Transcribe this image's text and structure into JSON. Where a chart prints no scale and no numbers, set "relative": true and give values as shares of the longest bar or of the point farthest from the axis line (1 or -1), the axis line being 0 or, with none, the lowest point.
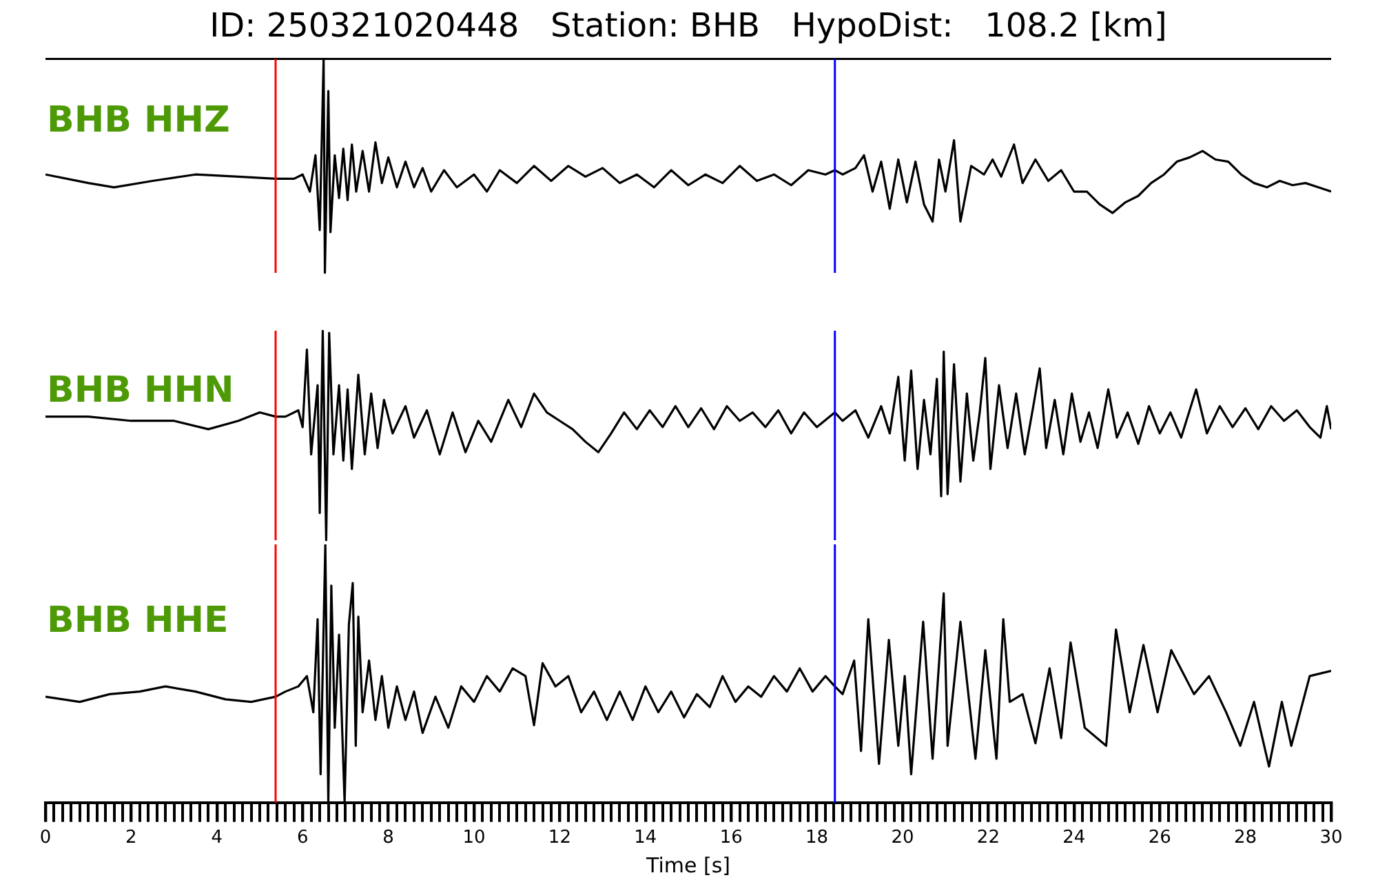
{
  "chart_data": [
    {
      "type": "line",
      "title": "ID: 250321020448   Station: BHB   HypoDist:   108.2 [km]",
      "relative": true,
      "xlim": [
        0,
        30
      ],
      "tick_labels": false,
      "legend": false,
      "x": [
        0,
        1.0,
        1.6,
        2.5,
        3.5,
        4.5,
        5.37,
        5.8,
        6.0,
        6.17,
        6.3,
        6.4,
        6.49,
        6.52,
        6.6,
        6.65,
        6.75,
        6.85,
        6.95,
        7.05,
        7.15,
        7.25,
        7.4,
        7.55,
        7.7,
        7.85,
        8.0,
        8.2,
        8.4,
        8.6,
        8.8,
        9.0,
        9.3,
        9.6,
        10.0,
        10.3,
        10.6,
        11.0,
        11.4,
        11.8,
        12.2,
        12.6,
        13.0,
        13.4,
        13.8,
        14.2,
        14.6,
        15.0,
        15.4,
        15.8,
        16.2,
        16.6,
        17.0,
        17.4,
        17.8,
        18.2,
        18.42,
        18.6,
        18.9,
        19.1,
        19.3,
        19.5,
        19.7,
        19.9,
        20.1,
        20.3,
        20.5,
        20.7,
        20.85,
        21.0,
        21.2,
        21.35,
        21.6,
        21.9,
        22.1,
        22.3,
        22.6,
        22.8,
        23.1,
        23.4,
        23.7,
        24.0,
        24.3,
        24.6,
        24.9,
        25.2,
        25.5,
        25.8,
        26.1,
        26.4,
        26.7,
        27.0,
        27.3,
        27.6,
        27.9,
        28.2,
        28.5,
        28.8,
        29.1,
        29.4,
        29.7,
        30.0
      ],
      "series": [
        {
          "name": "BHB HHZ",
          "color": "#000000",
          "values": [
            0.46,
            0.42,
            0.4,
            0.43,
            0.46,
            0.45,
            0.44,
            0.44,
            0.46,
            0.38,
            0.55,
            0.2,
            1,
            0,
            0.85,
            0.19,
            0.55,
            0.35,
            0.58,
            0.34,
            0.6,
            0.38,
            0.57,
            0.38,
            0.61,
            0.42,
            0.54,
            0.4,
            0.52,
            0.4,
            0.49,
            0.38,
            0.48,
            0.4,
            0.46,
            0.38,
            0.48,
            0.42,
            0.5,
            0.43,
            0.5,
            0.45,
            0.49,
            0.42,
            0.46,
            0.4,
            0.48,
            0.41,
            0.46,
            0.42,
            0.5,
            0.43,
            0.46,
            0.41,
            0.48,
            0.46,
            0.48,
            0.46,
            0.49,
            0.55,
            0.38,
            0.52,
            0.3,
            0.53,
            0.33,
            0.52,
            0.32,
            0.24,
            0.53,
            0.38,
            0.62,
            0.24,
            0.5,
            0.46,
            0.53,
            0.45,
            0.6,
            0.42,
            0.53,
            0.43,
            0.48,
            0.38,
            0.38,
            0.32,
            0.28,
            0.33,
            0.36,
            0.42,
            0.46,
            0.52,
            0.54,
            0.57,
            0.53,
            0.52,
            0.46,
            0.42,
            0.4,
            0.43,
            0.41,
            0.42,
            0.4,
            0.38
          ]
        }
      ],
      "ref_lines": [
        {
          "axis": "x",
          "value": 5.37,
          "color": "#ff0000"
        },
        {
          "axis": "x",
          "value": 18.42,
          "color": "#0000ff"
        }
      ]
    },
    {
      "type": "line",
      "relative": true,
      "xlim": [
        0,
        30
      ],
      "tick_labels": false,
      "legend": false,
      "x": [
        0,
        1.0,
        2.0,
        3.0,
        3.8,
        4.5,
        5.0,
        5.37,
        5.6,
        5.9,
        6.0,
        6.1,
        6.2,
        6.35,
        6.4,
        6.47,
        6.55,
        6.62,
        6.72,
        6.85,
        6.95,
        7.05,
        7.15,
        7.3,
        7.45,
        7.6,
        7.75,
        7.9,
        8.1,
        8.4,
        8.6,
        8.9,
        9.2,
        9.5,
        9.8,
        10.1,
        10.4,
        10.8,
        11.1,
        11.4,
        11.7,
        12.0,
        12.3,
        12.6,
        12.9,
        13.2,
        13.5,
        13.8,
        14.1,
        14.4,
        14.7,
        15.0,
        15.3,
        15.6,
        15.9,
        16.2,
        16.5,
        16.8,
        17.1,
        17.4,
        17.7,
        18.0,
        18.42,
        18.6,
        18.9,
        19.2,
        19.5,
        19.7,
        19.9,
        20.05,
        20.2,
        20.35,
        20.5,
        20.65,
        20.8,
        20.9,
        20.96,
        21.05,
        21.2,
        21.35,
        21.5,
        21.65,
        21.8,
        21.93,
        22.05,
        22.25,
        22.45,
        22.65,
        22.85,
        23.05,
        23.2,
        23.35,
        23.55,
        23.75,
        23.95,
        24.15,
        24.35,
        24.55,
        24.8,
        25.0,
        25.25,
        25.5,
        25.75,
        26.0,
        26.25,
        26.5,
        26.85,
        27.1,
        27.4,
        27.7,
        28.0,
        28.3,
        28.6,
        28.9,
        29.2,
        29.5,
        29.75,
        29.9,
        30.0
      ],
      "series": [
        {
          "name": "BHB HHN",
          "color": "#000000",
          "values": [
            0.59,
            0.59,
            0.57,
            0.57,
            0.53,
            0.57,
            0.61,
            0.59,
            0.59,
            0.62,
            0.54,
            0.91,
            0.41,
            0.74,
            0.13,
            1,
            0,
            0.99,
            0.41,
            0.74,
            0.38,
            0.72,
            0.34,
            0.79,
            0.41,
            0.7,
            0.44,
            0.67,
            0.51,
            0.64,
            0.49,
            0.62,
            0.41,
            0.61,
            0.42,
            0.57,
            0.47,
            0.67,
            0.54,
            0.7,
            0.61,
            0.57,
            0.53,
            0.47,
            0.42,
            0.51,
            0.61,
            0.53,
            0.62,
            0.54,
            0.64,
            0.54,
            0.63,
            0.53,
            0.64,
            0.57,
            0.61,
            0.54,
            0.62,
            0.51,
            0.61,
            0.54,
            0.61,
            0.57,
            0.62,
            0.49,
            0.64,
            0.51,
            0.78,
            0.38,
            0.81,
            0.34,
            0.67,
            0.41,
            0.77,
            0.21,
            0.9,
            0.22,
            0.84,
            0.28,
            0.7,
            0.38,
            0.61,
            0.87,
            0.34,
            0.74,
            0.44,
            0.7,
            0.41,
            0.64,
            0.82,
            0.44,
            0.67,
            0.41,
            0.7,
            0.47,
            0.61,
            0.44,
            0.72,
            0.49,
            0.61,
            0.46,
            0.64,
            0.51,
            0.61,
            0.49,
            0.72,
            0.51,
            0.64,
            0.54,
            0.63,
            0.53,
            0.64,
            0.57,
            0.62,
            0.54,
            0.49,
            0.64,
            0.53
          ]
        }
      ],
      "ref_lines": [
        {
          "axis": "x",
          "value": 5.37,
          "color": "#ff0000"
        },
        {
          "axis": "x",
          "value": 18.42,
          "color": "#0000ff"
        }
      ]
    },
    {
      "type": "line",
      "relative": true,
      "xlim": [
        0,
        30
      ],
      "xlabel": "Time [s]",
      "tick_labels": "x",
      "legend": false,
      "xticks": [
        0,
        {
          "value": 0.2,
          "label": null
        },
        {
          "value": 0.4,
          "label": null
        },
        {
          "value": 0.6,
          "label": null
        },
        {
          "value": 0.8,
          "label": null
        },
        {
          "value": 1,
          "label": null
        },
        {
          "value": 1.2,
          "label": null
        },
        {
          "value": 1.4,
          "label": null
        },
        {
          "value": 1.6,
          "label": null
        },
        {
          "value": 1.8,
          "label": null
        },
        2,
        {
          "value": 2.2,
          "label": null
        },
        {
          "value": 2.4,
          "label": null
        },
        {
          "value": 2.6,
          "label": null
        },
        {
          "value": 2.8,
          "label": null
        },
        {
          "value": 3,
          "label": null
        },
        {
          "value": 3.2,
          "label": null
        },
        {
          "value": 3.4,
          "label": null
        },
        {
          "value": 3.6,
          "label": null
        },
        {
          "value": 3.8,
          "label": null
        },
        4,
        {
          "value": 4.2,
          "label": null
        },
        {
          "value": 4.4,
          "label": null
        },
        {
          "value": 4.6,
          "label": null
        },
        {
          "value": 4.8,
          "label": null
        },
        {
          "value": 5,
          "label": null
        },
        {
          "value": 5.2,
          "label": null
        },
        {
          "value": 5.4,
          "label": null
        },
        {
          "value": 5.6,
          "label": null
        },
        {
          "value": 5.8,
          "label": null
        },
        6,
        {
          "value": 6.2,
          "label": null
        },
        {
          "value": 6.4,
          "label": null
        },
        {
          "value": 6.6,
          "label": null
        },
        {
          "value": 6.8,
          "label": null
        },
        {
          "value": 7,
          "label": null
        },
        {
          "value": 7.2,
          "label": null
        },
        {
          "value": 7.4,
          "label": null
        },
        {
          "value": 7.6,
          "label": null
        },
        {
          "value": 7.8,
          "label": null
        },
        8,
        {
          "value": 8.2,
          "label": null
        },
        {
          "value": 8.4,
          "label": null
        },
        {
          "value": 8.6,
          "label": null
        },
        {
          "value": 8.8,
          "label": null
        },
        {
          "value": 9,
          "label": null
        },
        {
          "value": 9.2,
          "label": null
        },
        {
          "value": 9.4,
          "label": null
        },
        {
          "value": 9.6,
          "label": null
        },
        {
          "value": 9.8,
          "label": null
        },
        10,
        {
          "value": 10.2,
          "label": null
        },
        {
          "value": 10.4,
          "label": null
        },
        {
          "value": 10.6,
          "label": null
        },
        {
          "value": 10.8,
          "label": null
        },
        {
          "value": 11,
          "label": null
        },
        {
          "value": 11.2,
          "label": null
        },
        {
          "value": 11.4,
          "label": null
        },
        {
          "value": 11.6,
          "label": null
        },
        {
          "value": 11.8,
          "label": null
        },
        12,
        {
          "value": 12.2,
          "label": null
        },
        {
          "value": 12.4,
          "label": null
        },
        {
          "value": 12.6,
          "label": null
        },
        {
          "value": 12.8,
          "label": null
        },
        {
          "value": 13,
          "label": null
        },
        {
          "value": 13.2,
          "label": null
        },
        {
          "value": 13.4,
          "label": null
        },
        {
          "value": 13.6,
          "label": null
        },
        {
          "value": 13.8,
          "label": null
        },
        14,
        {
          "value": 14.2,
          "label": null
        },
        {
          "value": 14.4,
          "label": null
        },
        {
          "value": 14.6,
          "label": null
        },
        {
          "value": 14.8,
          "label": null
        },
        {
          "value": 15,
          "label": null
        },
        {
          "value": 15.2,
          "label": null
        },
        {
          "value": 15.4,
          "label": null
        },
        {
          "value": 15.6,
          "label": null
        },
        {
          "value": 15.8,
          "label": null
        },
        16,
        {
          "value": 16.2,
          "label": null
        },
        {
          "value": 16.4,
          "label": null
        },
        {
          "value": 16.6,
          "label": null
        },
        {
          "value": 16.8,
          "label": null
        },
        {
          "value": 17,
          "label": null
        },
        {
          "value": 17.2,
          "label": null
        },
        {
          "value": 17.4,
          "label": null
        },
        {
          "value": 17.6,
          "label": null
        },
        {
          "value": 17.8,
          "label": null
        },
        18,
        {
          "value": 18.2,
          "label": null
        },
        {
          "value": 18.4,
          "label": null
        },
        {
          "value": 18.6,
          "label": null
        },
        {
          "value": 18.8,
          "label": null
        },
        {
          "value": 19,
          "label": null
        },
        {
          "value": 19.2,
          "label": null
        },
        {
          "value": 19.4,
          "label": null
        },
        {
          "value": 19.6,
          "label": null
        },
        {
          "value": 19.8,
          "label": null
        },
        20,
        {
          "value": 20.2,
          "label": null
        },
        {
          "value": 20.4,
          "label": null
        },
        {
          "value": 20.6,
          "label": null
        },
        {
          "value": 20.8,
          "label": null
        },
        {
          "value": 21,
          "label": null
        },
        {
          "value": 21.2,
          "label": null
        },
        {
          "value": 21.4,
          "label": null
        },
        {
          "value": 21.6,
          "label": null
        },
        {
          "value": 21.8,
          "label": null
        },
        22,
        {
          "value": 22.2,
          "label": null
        },
        {
          "value": 22.4,
          "label": null
        },
        {
          "value": 22.6,
          "label": null
        },
        {
          "value": 22.8,
          "label": null
        },
        {
          "value": 23,
          "label": null
        },
        {
          "value": 23.2,
          "label": null
        },
        {
          "value": 23.4,
          "label": null
        },
        {
          "value": 23.6,
          "label": null
        },
        {
          "value": 23.8,
          "label": null
        },
        24,
        {
          "value": 24.2,
          "label": null
        },
        {
          "value": 24.4,
          "label": null
        },
        {
          "value": 24.6,
          "label": null
        },
        {
          "value": 24.8,
          "label": null
        },
        {
          "value": 25,
          "label": null
        },
        {
          "value": 25.2,
          "label": null
        },
        {
          "value": 25.4,
          "label": null
        },
        {
          "value": 25.6,
          "label": null
        },
        {
          "value": 25.8,
          "label": null
        },
        26,
        {
          "value": 26.2,
          "label": null
        },
        {
          "value": 26.4,
          "label": null
        },
        {
          "value": 26.6,
          "label": null
        },
        {
          "value": 26.8,
          "label": null
        },
        {
          "value": 27,
          "label": null
        },
        {
          "value": 27.2,
          "label": null
        },
        {
          "value": 27.4,
          "label": null
        },
        {
          "value": 27.6,
          "label": null
        },
        {
          "value": 27.8,
          "label": null
        },
        28,
        {
          "value": 28.2,
          "label": null
        },
        {
          "value": 28.4,
          "label": null
        },
        {
          "value": 28.6,
          "label": null
        },
        {
          "value": 28.8,
          "label": null
        },
        {
          "value": 29,
          "label": null
        },
        {
          "value": 29.2,
          "label": null
        },
        {
          "value": 29.4,
          "label": null
        },
        {
          "value": 29.6,
          "label": null
        },
        {
          "value": 29.8,
          "label": null
        },
        30
      ],
      "x": [
        0,
        0.8,
        1.5,
        2.2,
        2.8,
        3.5,
        4.2,
        4.8,
        5.37,
        5.6,
        5.9,
        6.1,
        6.25,
        6.35,
        6.42,
        6.53,
        6.6,
        6.67,
        6.75,
        6.85,
        6.98,
        7.08,
        7.17,
        7.24,
        7.3,
        7.4,
        7.55,
        7.7,
        7.85,
        8.0,
        8.2,
        8.4,
        8.6,
        8.8,
        9.1,
        9.4,
        9.7,
        10.0,
        10.3,
        10.6,
        10.9,
        11.2,
        11.4,
        11.6,
        11.9,
        12.2,
        12.5,
        12.8,
        13.1,
        13.4,
        13.7,
        14.0,
        14.3,
        14.6,
        14.9,
        15.2,
        15.5,
        15.8,
        16.1,
        16.4,
        16.7,
        17.0,
        17.3,
        17.6,
        17.9,
        18.2,
        18.42,
        18.6,
        18.87,
        19.03,
        19.2,
        19.45,
        19.68,
        19.9,
        20.05,
        20.2,
        20.48,
        20.7,
        20.96,
        21.05,
        21.35,
        21.7,
        21.93,
        22.19,
        22.35,
        22.5,
        22.8,
        23.1,
        23.43,
        23.7,
        23.92,
        24.25,
        24.75,
        24.98,
        25.3,
        25.62,
        25.95,
        26.27,
        26.8,
        27.15,
        27.55,
        27.88,
        28.2,
        28.55,
        28.85,
        29.07,
        29.5,
        30.0
      ],
      "series": [
        {
          "name": "BHB HHE",
          "color": "#000000",
          "values": [
            0.41,
            0.39,
            0.42,
            0.43,
            0.45,
            0.43,
            0.4,
            0.39,
            0.41,
            0.43,
            0.45,
            0.49,
            0.35,
            0.71,
            0.11,
            1,
            0,
            0.84,
            0.29,
            0.65,
            0,
            0.69,
            0.85,
            0.22,
            0.72,
            0.35,
            0.55,
            0.32,
            0.49,
            0.29,
            0.45,
            0.32,
            0.43,
            0.27,
            0.41,
            0.29,
            0.45,
            0.39,
            0.49,
            0.43,
            0.52,
            0.49,
            0.3,
            0.54,
            0.45,
            0.49,
            0.35,
            0.43,
            0.32,
            0.43,
            0.32,
            0.45,
            0.35,
            0.43,
            0.33,
            0.42,
            0.37,
            0.49,
            0.39,
            0.45,
            0.41,
            0.49,
            0.43,
            0.52,
            0.43,
            0.49,
            0.45,
            0.42,
            0.55,
            0.2,
            0.71,
            0.15,
            0.63,
            0.22,
            0.49,
            0.11,
            0.7,
            0.17,
            0.81,
            0.22,
            0.7,
            0.17,
            0.59,
            0.17,
            0.71,
            0.39,
            0.42,
            0.23,
            0.52,
            0.25,
            0.62,
            0.29,
            0.22,
            0.67,
            0.35,
            0.61,
            0.35,
            0.59,
            0.42,
            0.49,
            0.35,
            0.22,
            0.39,
            0.14,
            0.39,
            0.22,
            0.49,
            0.51
          ]
        }
      ],
      "ref_lines": [
        {
          "axis": "x",
          "value": 5.37,
          "color": "#ff0000"
        },
        {
          "axis": "x",
          "value": 18.42,
          "color": "#0000ff"
        }
      ]
    }
  ]
}
